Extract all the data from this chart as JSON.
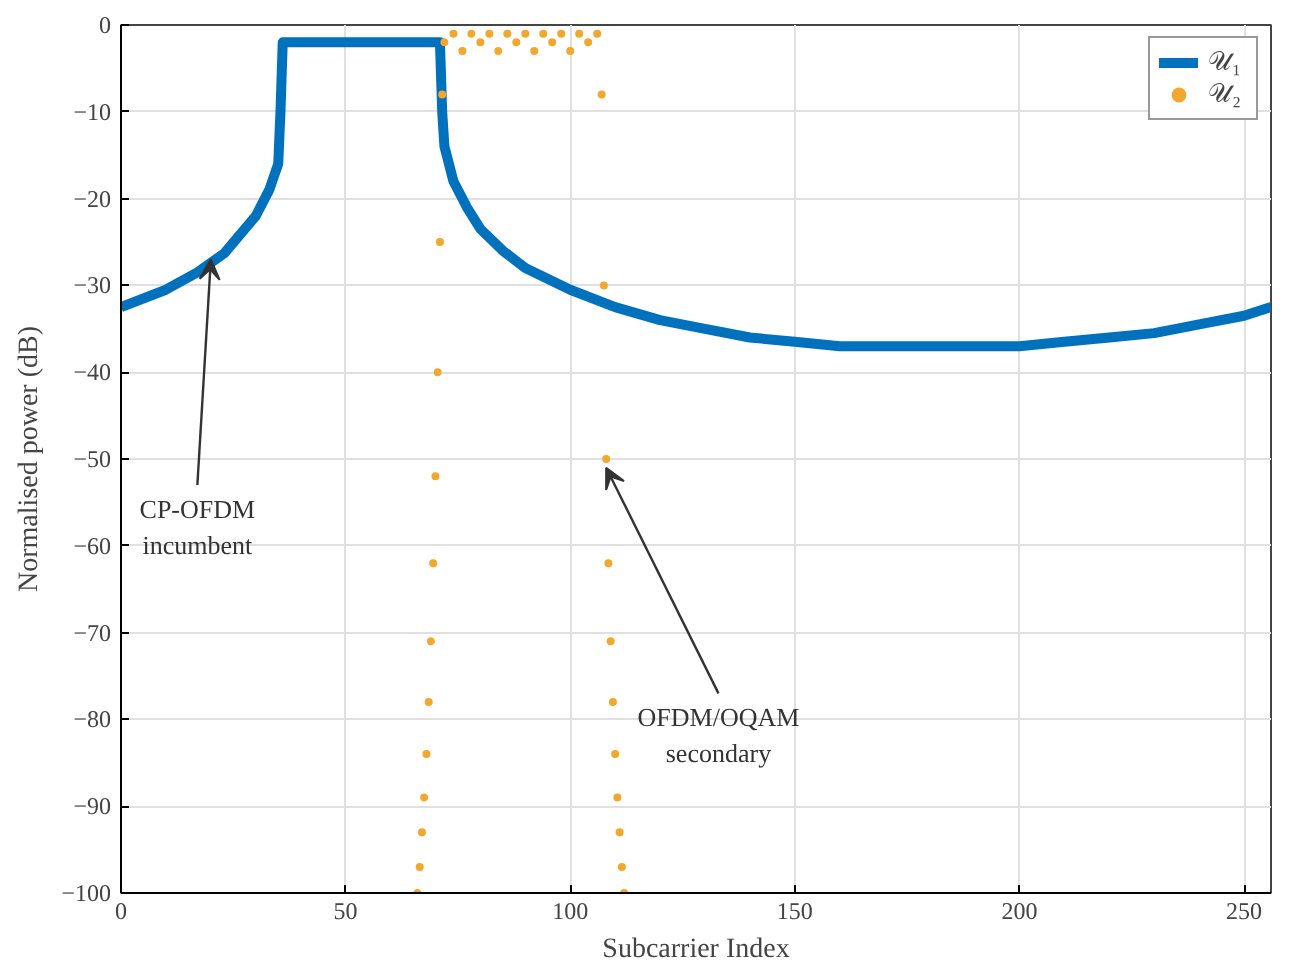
{
  "chart_data": {
    "type": "line",
    "xlabel": "Subcarrier Index",
    "ylabel": "Normalised power (dB)",
    "xlim": [
      0,
      256
    ],
    "ylim": [
      -100,
      0
    ],
    "xticks": [
      0,
      50,
      100,
      150,
      200,
      250
    ],
    "yticks": [
      -100,
      -90,
      -80,
      -70,
      -60,
      -50,
      -40,
      -30,
      -20,
      -10,
      0
    ],
    "grid": true,
    "legend": "top right",
    "series": [
      {
        "name": "𝒰₁",
        "color": "#0072bd",
        "x": [
          0,
          10,
          17,
          23,
          30,
          33,
          35,
          35.5,
          36,
          40,
          50,
          60,
          70,
          71,
          71.5,
          72,
          74,
          77,
          80,
          85,
          90,
          100,
          110,
          120,
          130,
          140,
          150,
          160,
          170,
          180,
          190,
          200,
          210,
          220,
          230,
          240,
          250,
          256
        ],
        "values": [
          -32.5,
          -30.5,
          -28.5,
          -26.3,
          -22,
          -19,
          -16,
          -10,
          -2,
          -2,
          -2,
          -2,
          -2,
          -2,
          -10,
          -14,
          -18,
          -21,
          -23.5,
          -26,
          -28,
          -30.5,
          -32.5,
          -34,
          -35,
          -36,
          -36.5,
          -37,
          -37,
          -37,
          -37,
          -37,
          -36.5,
          -36,
          -35.5,
          -34.5,
          -33.5,
          -32.5
        ]
      },
      {
        "name": "𝒰₂",
        "type": "scatter",
        "marker": "circle",
        "color": "#f2a72e",
        "x": [
          66,
          66.5,
          67,
          67.5,
          68,
          68.5,
          69,
          69.5,
          70,
          70.5,
          71,
          71.5,
          72,
          74,
          76,
          78,
          80,
          82,
          84,
          86,
          88,
          90,
          92,
          94,
          96,
          98,
          100,
          102,
          104,
          106,
          107,
          107.5,
          108,
          108.5,
          109,
          109.5,
          110,
          110.5,
          111,
          111.5,
          112
        ],
        "values": [
          -100,
          -97,
          -93,
          -89,
          -84,
          -78,
          -71,
          -62,
          -52,
          -40,
          -25,
          -8,
          -2,
          -1,
          -3,
          -1,
          -2,
          -1,
          -3,
          -1,
          -2,
          -1,
          -3,
          -1,
          -2,
          -1,
          -3,
          -1,
          -2,
          -1,
          -8,
          -30,
          -50,
          -62,
          -71,
          -78,
          -84,
          -89,
          -93,
          -97,
          -100
        ]
      }
    ],
    "annotations": [
      {
        "text": "CP-OFDM\nincumbent",
        "x": 20,
        "y": -27
      },
      {
        "text": "OFDM/OQAM\nsecondary",
        "x": 108,
        "y": -51
      }
    ]
  }
}
